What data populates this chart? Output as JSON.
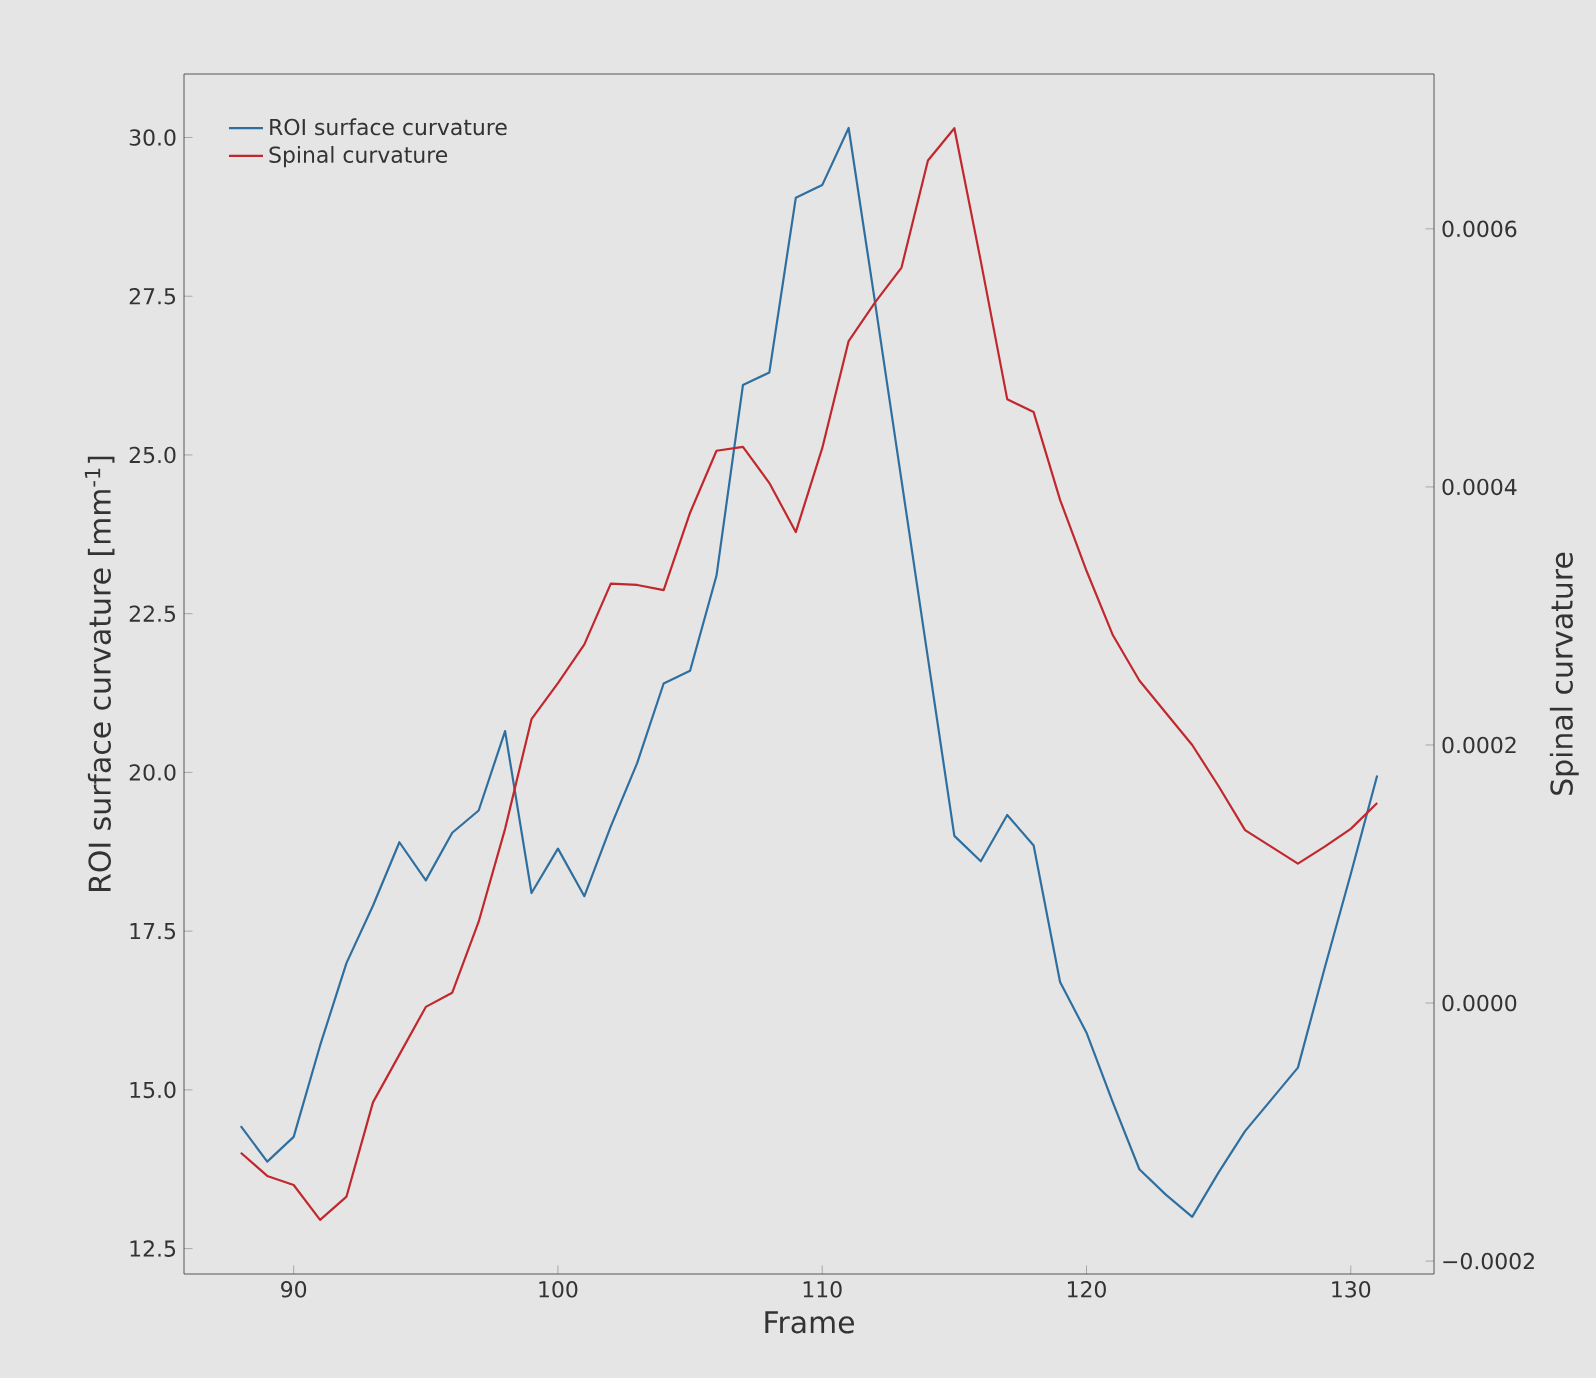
{
  "chart_data": {
    "type": "line",
    "xlabel": "Frame",
    "ylabel": "ROI surface curvature [mm$^{-1}$]",
    "y2label": "Spinal curvature",
    "xlim": [
      85.85,
      133.15
    ],
    "xticks": [
      90,
      100,
      110,
      120,
      130
    ],
    "ylim": [
      12.1,
      31.0
    ],
    "yticks": [
      12.5,
      {
        "value": 15,
        "label": "15.0"
      },
      17.5,
      {
        "value": 20,
        "label": "20.0"
      },
      22.5,
      {
        "value": 25,
        "label": "25.0"
      },
      27.5,
      {
        "value": 30,
        "label": "30.0"
      }
    ],
    "y2lim": [
      -0.00021,
      0.00072
    ],
    "y2ticks": [
      {
        "value": -0.0002,
        "label": "−0.0002"
      },
      {
        "value": 0,
        "label": "0.0000"
      },
      {
        "value": 0.0002,
        "label": "0.0002"
      },
      {
        "value": 0.0004,
        "label": "0.0004"
      },
      {
        "value": 0.0006,
        "label": "0.0006"
      }
    ],
    "legend": "top left",
    "marker": "none",
    "line_style": "solid",
    "grid": false,
    "series": [
      {
        "name": "ROI surface curvature",
        "color": "#2f6f9f",
        "x": [
          88,
          89,
          90,
          91,
          92,
          93,
          94,
          95,
          96,
          97,
          98,
          99,
          100,
          101,
          102,
          103,
          104,
          105,
          106,
          107,
          108,
          109,
          110,
          111,
          112,
          113,
          114,
          115,
          116,
          117,
          118,
          119,
          120,
          121,
          122,
          123,
          124,
          125,
          126,
          127,
          128,
          129,
          130,
          131
        ],
        "values": [
          14.43,
          13.87,
          14.26,
          15.7,
          17.0,
          17.9,
          18.9,
          18.3,
          19.05,
          19.4,
          20.65,
          18.1,
          18.8,
          18.05,
          19.15,
          20.15,
          21.4,
          21.6,
          23.1,
          26.1,
          26.3,
          29.05,
          29.25,
          30.15,
          27.4,
          24.6,
          21.8,
          19.0,
          18.6,
          19.33,
          18.85,
          16.7,
          15.9,
          14.8,
          13.75,
          13.35,
          13.0,
          13.7,
          14.35,
          14.85,
          15.35,
          16.9,
          18.4,
          19.95
        ]
      },
      {
        "name": "Spinal curvature",
        "color": "#c0282d",
        "axis": "y2",
        "x": [
          88,
          89,
          90,
          91,
          92,
          93,
          94,
          95,
          96,
          97,
          98,
          99,
          100,
          101,
          102,
          103,
          104,
          105,
          106,
          107,
          108,
          109,
          110,
          111,
          112,
          113,
          114,
          115,
          116,
          117,
          118,
          119,
          120,
          121,
          122,
          123,
          124,
          125,
          126,
          127,
          128,
          129,
          130,
          131
        ],
        "values": [
          -0.000116,
          -0.000134,
          -0.000141,
          -0.000168,
          -0.00015,
          -7.7e-05,
          -4e-05,
          -3e-06,
          8e-06,
          6.3e-05,
          0.000135,
          0.00022,
          0.000248,
          0.000278,
          0.000325,
          0.000324,
          0.00032,
          0.00038,
          0.000428,
          0.000431,
          0.000403,
          0.000365,
          0.00043,
          0.000513,
          0.000543,
          0.00057,
          0.000653,
          0.000678,
          0.000575,
          0.000468,
          0.000458,
          0.00039,
          0.000335,
          0.000285,
          0.00025,
          0.000225,
          0.0002,
          0.000168,
          0.000134,
          0.000121,
          0.000108,
          0.000121,
          0.000135,
          0.000155
        ]
      }
    ]
  }
}
